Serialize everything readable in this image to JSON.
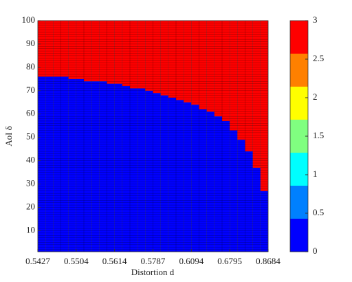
{
  "chart_data": {
    "type": "heatmap",
    "xlabel": "Distortion d",
    "ylabel": "AoI δ",
    "xlim": [
      1,
      31
    ],
    "xticks": [
      {
        "value": 1,
        "label": "0.5427"
      },
      {
        "value": 6,
        "label": "0.5504"
      },
      {
        "value": 11,
        "label": "0.5614"
      },
      {
        "value": 16,
        "label": "0.5787"
      },
      {
        "value": 21,
        "label": "0.6094"
      },
      {
        "value": 26,
        "label": "0.6795"
      },
      {
        "value": 31,
        "label": "0.8684"
      }
    ],
    "ylim": [
      1,
      100
    ],
    "yticks": [
      10,
      20,
      30,
      40,
      50,
      60,
      70,
      80,
      90,
      100
    ],
    "boundary": [
      76,
      76,
      76,
      76,
      75,
      75,
      74,
      74,
      74,
      73,
      73,
      72,
      71,
      71,
      70,
      69,
      68,
      67,
      66,
      65,
      64,
      62,
      61,
      59,
      57,
      53,
      49,
      44,
      37,
      27
    ],
    "levels": [
      0,
      3
    ],
    "colorbar": {
      "lim": [
        0,
        3
      ],
      "ticks": [
        0,
        0.5,
        1,
        1.5,
        2,
        2.5,
        3
      ],
      "colors": [
        "#0000ff",
        "#0080ff",
        "#00ffff",
        "#80ff80",
        "#ffff00",
        "#ff8000",
        "#ff0000"
      ]
    }
  }
}
